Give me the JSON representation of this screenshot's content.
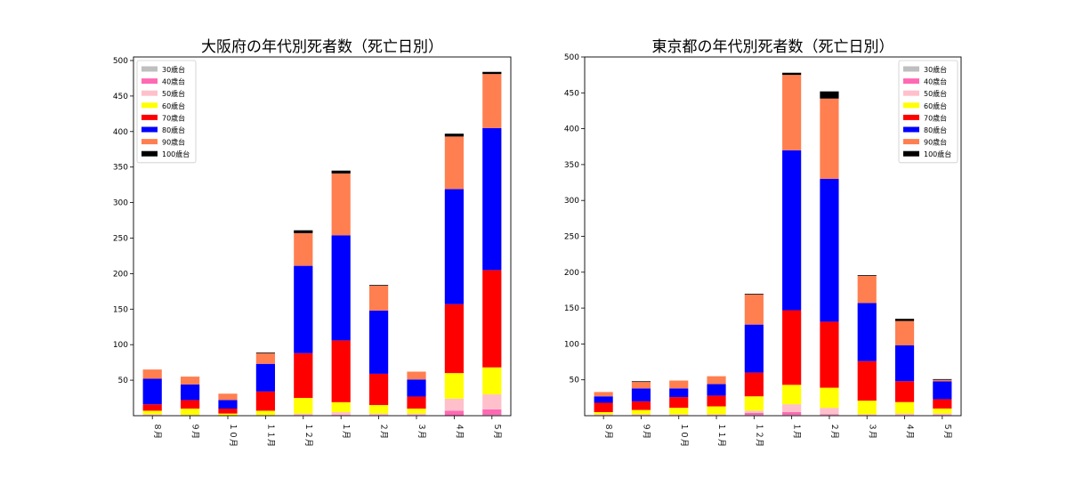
{
  "chart_data": [
    {
      "type": "bar",
      "stacked": true,
      "title": "大阪府の年代別死者数（死亡日別）",
      "xlabel": "",
      "ylabel": "",
      "categories": [
        "８月",
        "９月",
        "１０月",
        "１１月",
        "１２月",
        "１月",
        "２月",
        "３月",
        "４月",
        "５月"
      ],
      "ylim": [
        0,
        505
      ],
      "yticks": [
        50,
        100,
        150,
        200,
        250,
        300,
        350,
        400,
        450,
        500
      ],
      "legend_position": "top-left",
      "grid": false,
      "series": [
        {
          "name": "30歳台",
          "color": "#bfbfbf",
          "values": [
            0,
            0,
            0,
            0,
            0,
            0,
            0,
            0,
            0,
            1
          ]
        },
        {
          "name": "40歳台",
          "color": "#ff69b4",
          "values": [
            0,
            0,
            0,
            0,
            0,
            1,
            0,
            0,
            7,
            8
          ]
        },
        {
          "name": "50歳台",
          "color": "#ffc0cb",
          "values": [
            2,
            1,
            0,
            1,
            3,
            4,
            3,
            3,
            17,
            21
          ]
        },
        {
          "name": "60歳台",
          "color": "#ffff00",
          "values": [
            5,
            9,
            3,
            6,
            22,
            14,
            12,
            7,
            36,
            38
          ]
        },
        {
          "name": "70歳台",
          "color": "#ff0000",
          "values": [
            9,
            12,
            7,
            27,
            63,
            87,
            44,
            17,
            97,
            137
          ]
        },
        {
          "name": "80歳台",
          "color": "#0000ff",
          "values": [
            36,
            22,
            12,
            39,
            123,
            148,
            89,
            24,
            162,
            200
          ]
        },
        {
          "name": "90歳台",
          "color": "#ff7f50",
          "values": [
            13,
            11,
            9,
            15,
            46,
            87,
            35,
            11,
            74,
            76
          ]
        },
        {
          "name": "100歳台",
          "color": "#000000",
          "values": [
            0,
            0,
            0,
            1,
            4,
            4,
            1,
            0,
            4,
            3
          ]
        }
      ]
    },
    {
      "type": "bar",
      "stacked": true,
      "title": "東京都の年代別死者数（死亡日別）",
      "xlabel": "",
      "ylabel": "",
      "categories": [
        "８月",
        "９月",
        "１０月",
        "１１月",
        "１２月",
        "１月",
        "２月",
        "３月",
        "４月",
        "５月"
      ],
      "ylim": [
        0,
        500
      ],
      "yticks": [
        50,
        100,
        150,
        200,
        250,
        300,
        350,
        400,
        450,
        500
      ],
      "legend_position": "top-right",
      "grid": false,
      "series": [
        {
          "name": "30歳台",
          "color": "#bfbfbf",
          "values": [
            0,
            0,
            0,
            0,
            1,
            1,
            1,
            0,
            0,
            0
          ]
        },
        {
          "name": "40歳台",
          "color": "#ff69b4",
          "values": [
            0,
            0,
            0,
            0,
            3,
            4,
            1,
            0,
            0,
            1
          ]
        },
        {
          "name": "50歳台",
          "color": "#ffc0cb",
          "values": [
            2,
            2,
            2,
            2,
            3,
            11,
            9,
            2,
            3,
            2
          ]
        },
        {
          "name": "60歳台",
          "color": "#ffff00",
          "values": [
            3,
            6,
            9,
            11,
            20,
            27,
            28,
            19,
            16,
            7
          ]
        },
        {
          "name": "70歳台",
          "color": "#ff0000",
          "values": [
            13,
            12,
            15,
            15,
            33,
            104,
            92,
            55,
            29,
            13
          ]
        },
        {
          "name": "80歳台",
          "color": "#0000ff",
          "values": [
            9,
            18,
            12,
            16,
            67,
            223,
            199,
            81,
            50,
            25
          ]
        },
        {
          "name": "90歳台",
          "color": "#ff7f50",
          "values": [
            6,
            9,
            11,
            11,
            42,
            105,
            112,
            38,
            34,
            2
          ]
        },
        {
          "name": "100歳台",
          "color": "#000000",
          "values": [
            0,
            1,
            0,
            0,
            1,
            3,
            10,
            1,
            3,
            1
          ]
        }
      ]
    }
  ]
}
